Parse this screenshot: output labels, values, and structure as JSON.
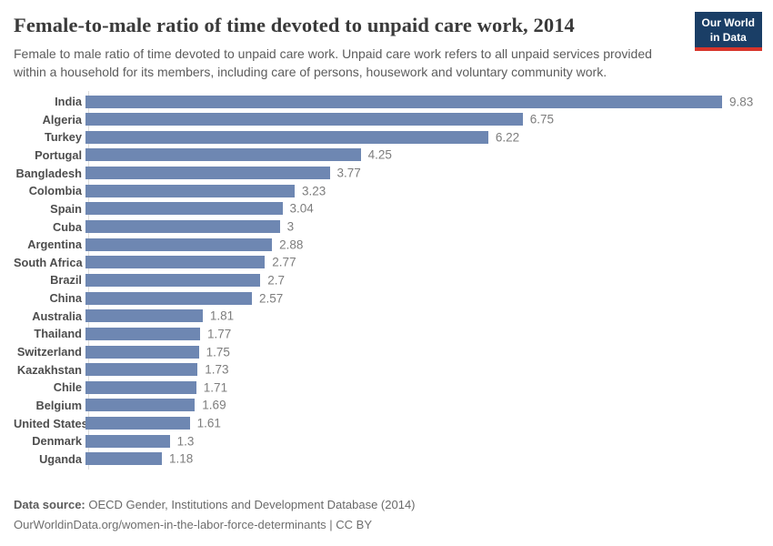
{
  "header": {
    "title": "Female-to-male ratio of time devoted to unpaid care work, 2014",
    "subtitle": "Female to male ratio of time devoted to unpaid care work. Unpaid care work refers to all unpaid services provided within a household for its members, including care of persons, housework and voluntary community work.",
    "logo": {
      "line1": "Our World",
      "line2": "in Data",
      "bg_color": "#1a3e66",
      "accent_color": "#d7352b"
    }
  },
  "chart_data": {
    "type": "bar",
    "orientation": "horizontal",
    "title": "Female-to-male ratio of time devoted to unpaid care work, 2014",
    "xlabel": "",
    "ylabel": "",
    "xlim": [
      0,
      9.83
    ],
    "grid": false,
    "legend": false,
    "bar_color": "#6e87b2",
    "categories": [
      "India",
      "Algeria",
      "Turkey",
      "Portugal",
      "Bangladesh",
      "Colombia",
      "Spain",
      "Cuba",
      "Argentina",
      "South Africa",
      "Brazil",
      "China",
      "Australia",
      "Thailand",
      "Switzerland",
      "Kazakhstan",
      "Chile",
      "Belgium",
      "United States",
      "Denmark",
      "Uganda"
    ],
    "values": [
      9.83,
      6.75,
      6.22,
      4.25,
      3.77,
      3.23,
      3.04,
      3,
      2.88,
      2.77,
      2.7,
      2.57,
      1.81,
      1.77,
      1.75,
      1.73,
      1.71,
      1.69,
      1.61,
      1.3,
      1.18
    ],
    "value_labels": [
      "9.83",
      "6.75",
      "6.22",
      "4.25",
      "3.77",
      "3.23",
      "3.04",
      "3",
      "2.88",
      "2.77",
      "2.7",
      "2.57",
      "1.81",
      "1.77",
      "1.75",
      "1.73",
      "1.71",
      "1.69",
      "1.61",
      "1.3",
      "1.18"
    ]
  },
  "footer": {
    "source_label": "Data source:",
    "source_text": " OECD Gender, Institutions and Development Database (2014)",
    "link_line": "OurWorldinData.org/women-in-the-labor-force-determinants | CC BY"
  }
}
